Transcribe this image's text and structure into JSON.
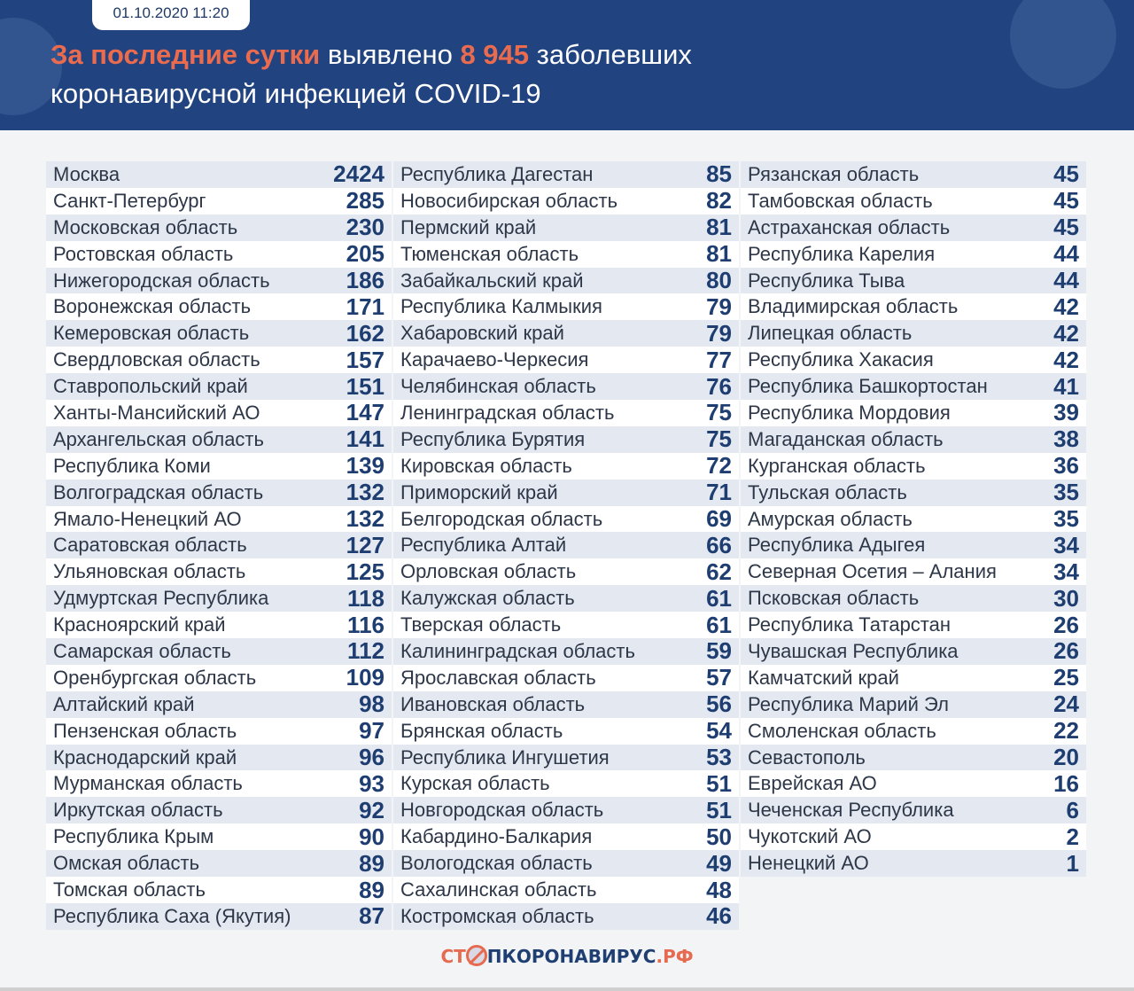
{
  "header": {
    "date": "01.10.2020 11:20",
    "title_accent_1": "За последние сутки",
    "title_text_1": " выявлено ",
    "title_accent_2": "8 945",
    "title_text_2": " заболевших",
    "title_line_2": "коронавирусной инфекцией COVID-19"
  },
  "colors": {
    "header_bg": "#21437f",
    "accent": "#eb6b4f",
    "value": "#1e3d70",
    "row_alt": "#e4e9f1"
  },
  "columns": [
    [
      {
        "name": "Москва",
        "value": "2424"
      },
      {
        "name": "Санкт-Петербург",
        "value": "285"
      },
      {
        "name": "Московская область",
        "value": "230"
      },
      {
        "name": "Ростовская область",
        "value": "205"
      },
      {
        "name": "Нижегородская область",
        "value": "186"
      },
      {
        "name": "Воронежская область",
        "value": "171"
      },
      {
        "name": "Кемеровская область",
        "value": "162"
      },
      {
        "name": "Свердловская область",
        "value": "157"
      },
      {
        "name": "Ставропольский край",
        "value": "151"
      },
      {
        "name": "Ханты-Мансийский АО",
        "value": "147"
      },
      {
        "name": "Архангельская область",
        "value": "141"
      },
      {
        "name": "Республика Коми",
        "value": "139"
      },
      {
        "name": "Волгоградская область",
        "value": "132"
      },
      {
        "name": "Ямало-Ненецкий АО",
        "value": "132"
      },
      {
        "name": "Саратовская область",
        "value": "127"
      },
      {
        "name": "Ульяновская область",
        "value": "125"
      },
      {
        "name": "Удмуртская Республика",
        "value": "118"
      },
      {
        "name": "Красноярский край",
        "value": "116"
      },
      {
        "name": "Самарская область",
        "value": "112"
      },
      {
        "name": "Оренбургская область",
        "value": "109"
      },
      {
        "name": "Алтайский край",
        "value": "98"
      },
      {
        "name": "Пензенская область",
        "value": "97"
      },
      {
        "name": "Краснодарский край",
        "value": "96"
      },
      {
        "name": "Мурманская область",
        "value": "93"
      },
      {
        "name": "Иркутская область",
        "value": "92"
      },
      {
        "name": "Республика Крым",
        "value": "90"
      },
      {
        "name": "Омская область",
        "value": "89"
      },
      {
        "name": "Томская область",
        "value": "89"
      },
      {
        "name": "Республика Саха (Якутия)",
        "value": "87"
      }
    ],
    [
      {
        "name": "Республика Дагестан",
        "value": "85"
      },
      {
        "name": "Новосибирская область",
        "value": "82"
      },
      {
        "name": "Пермский край",
        "value": "81"
      },
      {
        "name": "Тюменская область",
        "value": "81"
      },
      {
        "name": "Забайкальский край",
        "value": "80"
      },
      {
        "name": "Республика Калмыкия",
        "value": "79"
      },
      {
        "name": "Хабаровский край",
        "value": "79"
      },
      {
        "name": "Карачаево-Черкесия",
        "value": "77"
      },
      {
        "name": "Челябинская область",
        "value": "76"
      },
      {
        "name": "Ленинградская область",
        "value": "75"
      },
      {
        "name": "Республика Бурятия",
        "value": "75"
      },
      {
        "name": "Кировская область",
        "value": "72"
      },
      {
        "name": "Приморский край",
        "value": "71"
      },
      {
        "name": "Белгородская область",
        "value": "69"
      },
      {
        "name": "Республика Алтай",
        "value": "66"
      },
      {
        "name": "Орловская область",
        "value": "62"
      },
      {
        "name": "Калужская область",
        "value": "61"
      },
      {
        "name": "Тверская область",
        "value": "61"
      },
      {
        "name": "Калининградская область",
        "value": "59"
      },
      {
        "name": "Ярославская область",
        "value": "57"
      },
      {
        "name": "Ивановская область",
        "value": "56"
      },
      {
        "name": "Брянская область",
        "value": "54"
      },
      {
        "name": "Республика Ингушетия",
        "value": "53"
      },
      {
        "name": "Курская область",
        "value": "51"
      },
      {
        "name": "Новгородская область",
        "value": "51"
      },
      {
        "name": "Кабардино-Балкария",
        "value": "50"
      },
      {
        "name": "Вологодская область",
        "value": "49"
      },
      {
        "name": "Сахалинская область",
        "value": "48"
      },
      {
        "name": "Костромская область",
        "value": "46"
      }
    ],
    [
      {
        "name": "Рязанская область",
        "value": "45"
      },
      {
        "name": "Тамбовская область",
        "value": "45"
      },
      {
        "name": "Астраханская область",
        "value": "45"
      },
      {
        "name": "Республика Карелия",
        "value": "44"
      },
      {
        "name": "Республика Тыва",
        "value": "44"
      },
      {
        "name": "Владимирская область",
        "value": "42"
      },
      {
        "name": "Липецкая область",
        "value": "42"
      },
      {
        "name": "Республика Хакасия",
        "value": "42"
      },
      {
        "name": "Республика Башкортостан",
        "value": "41"
      },
      {
        "name": "Республика Мордовия",
        "value": "39"
      },
      {
        "name": "Магаданская область",
        "value": "38"
      },
      {
        "name": "Курганская область",
        "value": "36"
      },
      {
        "name": "Тульская область",
        "value": "35"
      },
      {
        "name": "Амурская область",
        "value": "35"
      },
      {
        "name": "Республика Адыгея",
        "value": "34"
      },
      {
        "name": "Северная Осетия – Алания",
        "value": "34"
      },
      {
        "name": "Псковская область",
        "value": "30"
      },
      {
        "name": "Республика Татарстан",
        "value": "26"
      },
      {
        "name": "Чувашская Республика",
        "value": "26"
      },
      {
        "name": "Камчатский край",
        "value": "25"
      },
      {
        "name": "Республика Марий Эл",
        "value": "24"
      },
      {
        "name": "Смоленская область",
        "value": "22"
      },
      {
        "name": "Севастополь",
        "value": "20"
      },
      {
        "name": "Еврейская АО",
        "value": "16"
      },
      {
        "name": "Чеченская Республика",
        "value": "6"
      },
      {
        "name": "Чукотский АО",
        "value": "2"
      },
      {
        "name": "Ненецкий АО",
        "value": "1"
      }
    ]
  ],
  "footer": {
    "logo_part_1": "СТ",
    "logo_part_2": "ПКОРОНАВИРУС",
    "logo_part_3": ".РФ"
  }
}
